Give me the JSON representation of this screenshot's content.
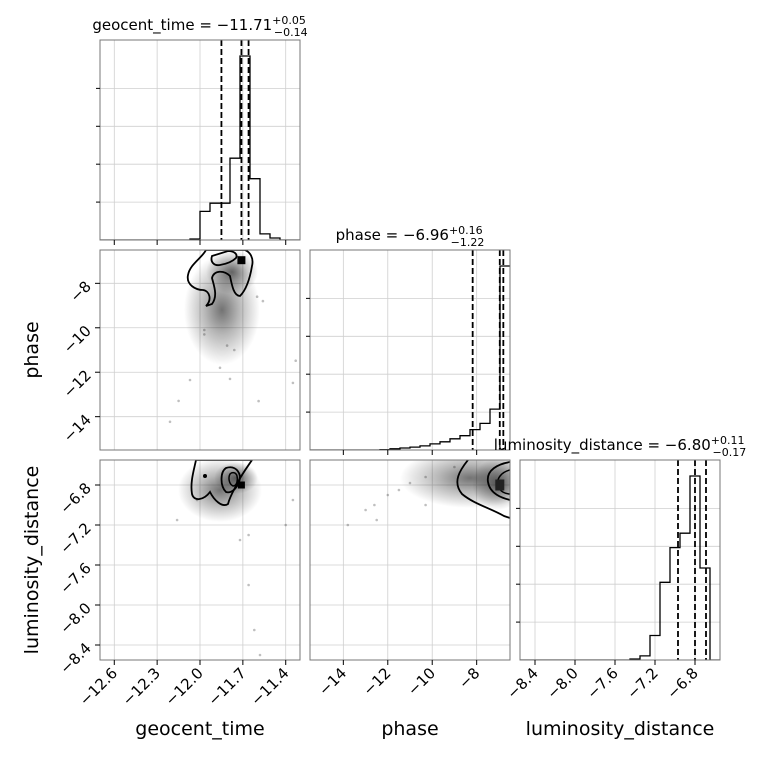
{
  "chart_data": {
    "type": "corner",
    "parameters": [
      "geocent_time",
      "phase",
      "luminosity_distance"
    ],
    "titles": [
      {
        "param": "geocent_time",
        "prefix": "geocent_time = ",
        "median": "−11.71",
        "plus": "+0.05",
        "minus": "−0.14"
      },
      {
        "param": "phase",
        "prefix": "phase = ",
        "median": "−6.96",
        "plus": "+0.16",
        "minus": "−1.22"
      },
      {
        "param": "luminosity_distance",
        "prefix": "luminosity_distance = ",
        "median": "−6.80",
        "plus": "+0.11",
        "minus": "−0.17"
      }
    ],
    "axis_labels": {
      "x": [
        "geocent_time",
        "phase",
        "luminosity_distance"
      ],
      "y": [
        "phase",
        "luminosity_distance"
      ]
    },
    "ranges": {
      "geocent_time": [
        -12.7,
        -11.3
      ],
      "phase": [
        -15.5,
        -6.5
      ],
      "luminosity_distance": [
        -8.55,
        -6.55
      ]
    },
    "ticks": {
      "geocent_time": {
        "values": [
          -12.6,
          -12.3,
          -12.0,
          -11.7,
          -11.4
        ],
        "labels": [
          "−12.6",
          "−12.3",
          "−12.0",
          "−11.7",
          "−11.4"
        ]
      },
      "phase_x": {
        "values": [
          -14,
          -12,
          -10,
          -8
        ],
        "labels": [
          "−14",
          "−12",
          "−10",
          "−8"
        ]
      },
      "phase_y": {
        "values": [
          -8,
          -10,
          -12,
          -14
        ],
        "labels": [
          "−8",
          "−10",
          "−12",
          "−14"
        ]
      },
      "luminosity_distance": {
        "values": [
          -8.4,
          -8.0,
          -7.6,
          -7.2,
          -6.8
        ],
        "labels": [
          "−8.4",
          "−8.0",
          "−7.6",
          "−7.2",
          "−6.8"
        ]
      }
    },
    "histograms": {
      "geocent_time": {
        "edges": [
          -12.7,
          -12.63,
          -12.56,
          -12.49,
          -12.42,
          -12.35,
          -12.28,
          -12.21,
          -12.14,
          -12.07,
          -12.0,
          -11.93,
          -11.86,
          -11.79,
          -11.72,
          -11.65,
          -11.58,
          -11.51,
          -11.44,
          -11.37,
          -11.3
        ],
        "counts": [
          0,
          0,
          0,
          0,
          0,
          0,
          0,
          0,
          0,
          0.005,
          0.14,
          0.18,
          0.18,
          0.4,
          0.9,
          0.3,
          0.03,
          0.01,
          0,
          0
        ],
        "quantiles": [
          -11.85,
          -11.71,
          -11.66
        ]
      },
      "phase": {
        "edges": [
          -15.5,
          -15.05,
          -14.6,
          -14.15,
          -13.7,
          -13.25,
          -12.8,
          -12.35,
          -11.9,
          -11.45,
          -11.0,
          -10.55,
          -10.1,
          -9.65,
          -9.2,
          -8.75,
          -8.3,
          -7.85,
          -7.4,
          -6.95,
          -6.5
        ],
        "counts": [
          0,
          0,
          0,
          0,
          0,
          0,
          0,
          0.002,
          0.006,
          0.01,
          0.014,
          0.02,
          0.03,
          0.04,
          0.055,
          0.07,
          0.1,
          0.13,
          0.2,
          0.9
        ],
        "quantiles": [
          -8.18,
          -6.96,
          -6.8
        ]
      },
      "luminosity_distance": {
        "edges": [
          -8.55,
          -8.45,
          -8.35,
          -8.25,
          -8.15,
          -8.05,
          -7.95,
          -7.85,
          -7.75,
          -7.65,
          -7.55,
          -7.45,
          -7.35,
          -7.25,
          -7.15,
          -7.05,
          -6.95,
          -6.85,
          -6.75,
          -6.65,
          -6.55
        ],
        "counts": [
          0,
          0,
          0,
          0,
          0,
          0,
          0,
          0,
          0,
          0,
          0,
          0.005,
          0.02,
          0.12,
          0.38,
          0.55,
          0.62,
          0.9,
          0.45,
          0
        ],
        "quantiles": [
          -6.97,
          -6.8,
          -6.69
        ]
      }
    },
    "scatter": {
      "phase_vs_geocent_time": [
        [
          -12.21,
          -14.23
        ],
        [
          -12.15,
          -13.29
        ],
        [
          -12.07,
          -12.35
        ],
        [
          -11.33,
          -11.48
        ],
        [
          -11.35,
          -12.48
        ],
        [
          -11.86,
          -11.8
        ],
        [
          -11.79,
          -12.3
        ],
        [
          -11.59,
          -13.3
        ],
        [
          -11.97,
          -10.3
        ],
        [
          -11.97,
          -10.1
        ],
        [
          -11.6,
          -8.6
        ],
        [
          -11.56,
          -8.8
        ],
        [
          -11.81,
          -10.8
        ],
        [
          -11.76,
          -11.0
        ]
      ],
      "luminosity_distance_vs_geocent_time": [
        [
          -12.16,
          -7.15
        ],
        [
          -11.66,
          -7.8
        ],
        [
          -11.62,
          -8.25
        ],
        [
          -11.58,
          -8.5
        ],
        [
          -11.72,
          -7.35
        ],
        [
          -11.35,
          -6.95
        ],
        [
          -11.4,
          -7.2
        ],
        [
          -12.02,
          -6.95
        ],
        [
          -11.66,
          -7.3
        ]
      ],
      "luminosity_distance_vs_phase": [
        [
          -13.8,
          -7.2
        ],
        [
          -13.0,
          -7.05
        ],
        [
          -12.6,
          -7.0
        ],
        [
          -12.0,
          -6.9
        ],
        [
          -11.5,
          -6.85
        ],
        [
          -11.0,
          -6.78
        ],
        [
          -10.3,
          -6.72
        ],
        [
          -9.0,
          -6.62
        ],
        [
          -10.3,
          -7.0
        ],
        [
          -12.5,
          -7.15
        ]
      ]
    },
    "contour_peaks": {
      "phase_vs_geocent_time": [
        -11.71,
        -6.96
      ],
      "luminosity_distance_vs_geocent_time": [
        -11.71,
        -6.8
      ],
      "luminosity_distance_vs_phase": [
        -6.96,
        -6.8
      ]
    },
    "grid": true
  }
}
